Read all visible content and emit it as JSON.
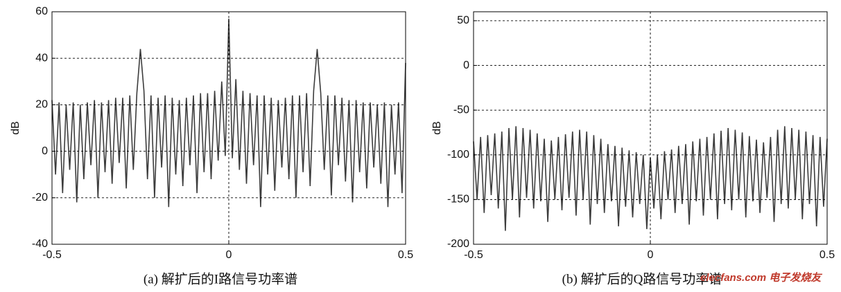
{
  "chart_data": [
    {
      "type": "line",
      "title": "(a) 解扩后的I路信号功率谱",
      "ylabel": "dB",
      "color": "#3c3c3c",
      "grid": true,
      "xlim": [
        -0.5,
        0.5
      ],
      "xticks": [
        -0.5,
        0,
        0.5
      ],
      "ylim": [
        -40,
        60
      ],
      "yticks": [
        -40,
        -20,
        0,
        20,
        40,
        60
      ],
      "x": [
        -0.5,
        -0.49,
        -0.48,
        -0.47,
        -0.46,
        -0.45,
        -0.44,
        -0.43,
        -0.42,
        -0.41,
        -0.4,
        -0.39,
        -0.38,
        -0.37,
        -0.36,
        -0.35,
        -0.34,
        -0.33,
        -0.32,
        -0.31,
        -0.3,
        -0.29,
        -0.28,
        -0.27,
        -0.26,
        -0.25,
        -0.24,
        -0.23,
        -0.22,
        -0.21,
        -0.2,
        -0.19,
        -0.18,
        -0.17,
        -0.16,
        -0.15,
        -0.14,
        -0.13,
        -0.12,
        -0.11,
        -0.1,
        -0.09,
        -0.08,
        -0.07,
        -0.06,
        -0.05,
        -0.04,
        -0.03,
        -0.02,
        -0.01,
        0,
        0.01,
        0.02,
        0.03,
        0.04,
        0.05,
        0.06,
        0.07,
        0.08,
        0.09,
        0.1,
        0.11,
        0.12,
        0.13,
        0.14,
        0.15,
        0.16,
        0.17,
        0.18,
        0.19,
        0.2,
        0.21,
        0.22,
        0.23,
        0.24,
        0.25,
        0.26,
        0.27,
        0.28,
        0.29,
        0.3,
        0.31,
        0.32,
        0.33,
        0.34,
        0.35,
        0.36,
        0.37,
        0.38,
        0.39,
        0.4,
        0.41,
        0.42,
        0.43,
        0.44,
        0.45,
        0.46,
        0.47,
        0.48,
        0.49,
        0.5
      ],
      "values": [
        22,
        -10,
        21,
        -18,
        20,
        -8,
        21,
        -22,
        20,
        -12,
        21,
        -6,
        22,
        -20,
        21,
        -9,
        22,
        -14,
        23,
        -5,
        23,
        -16,
        24,
        -8,
        25,
        44,
        26,
        -12,
        24,
        -20,
        23,
        -7,
        24,
        -24,
        23,
        -10,
        22,
        -15,
        23,
        -6,
        24,
        -18,
        25,
        -9,
        25,
        -12,
        26,
        -4,
        30,
        -2,
        57,
        -3,
        31,
        -8,
        26,
        -14,
        25,
        -6,
        24,
        -24,
        24,
        -10,
        23,
        -17,
        22,
        -7,
        23,
        -12,
        24,
        -20,
        24,
        -9,
        25,
        -15,
        26,
        44,
        25,
        -8,
        24,
        -19,
        24,
        -6,
        23,
        -13,
        22,
        -22,
        22,
        -9,
        21,
        -16,
        21,
        -7,
        20,
        -14,
        21,
        -24,
        20,
        -10,
        21,
        -18,
        38
      ]
    },
    {
      "type": "line",
      "title": "(b) 解扩后的Q路信号功率谱",
      "ylabel": "dB",
      "color": "#3c3c3c",
      "grid": true,
      "watermark": "elecfans.com 电子发烧友",
      "xlim": [
        -0.5,
        0.5
      ],
      "xticks": [
        -0.5,
        0,
        0.5
      ],
      "ylim": [
        -200,
        60
      ],
      "yticks": [
        -200,
        -150,
        -100,
        -50,
        0,
        50
      ],
      "x": [
        -0.5,
        -0.49,
        -0.48,
        -0.47,
        -0.46,
        -0.45,
        -0.44,
        -0.43,
        -0.42,
        -0.41,
        -0.4,
        -0.39,
        -0.38,
        -0.37,
        -0.36,
        -0.35,
        -0.34,
        -0.33,
        -0.32,
        -0.31,
        -0.3,
        -0.29,
        -0.28,
        -0.27,
        -0.26,
        -0.25,
        -0.24,
        -0.23,
        -0.22,
        -0.21,
        -0.2,
        -0.19,
        -0.18,
        -0.17,
        -0.16,
        -0.15,
        -0.14,
        -0.13,
        -0.12,
        -0.11,
        -0.1,
        -0.09,
        -0.08,
        -0.07,
        -0.06,
        -0.05,
        -0.04,
        -0.03,
        -0.02,
        -0.01,
        0,
        0.01,
        0.02,
        0.03,
        0.04,
        0.05,
        0.06,
        0.07,
        0.08,
        0.09,
        0.1,
        0.11,
        0.12,
        0.13,
        0.14,
        0.15,
        0.16,
        0.17,
        0.18,
        0.19,
        0.2,
        0.21,
        0.22,
        0.23,
        0.24,
        0.25,
        0.26,
        0.27,
        0.28,
        0.29,
        0.3,
        0.31,
        0.32,
        0.33,
        0.34,
        0.35,
        0.36,
        0.37,
        0.38,
        0.39,
        0.4,
        0.41,
        0.42,
        0.43,
        0.44,
        0.45,
        0.46,
        0.47,
        0.48,
        0.49,
        0.5
      ],
      "values": [
        -85,
        -150,
        -80,
        -165,
        -78,
        -145,
        -76,
        -160,
        -74,
        -185,
        -70,
        -150,
        -68,
        -170,
        -70,
        -148,
        -72,
        -160,
        -76,
        -152,
        -82,
        -175,
        -84,
        -150,
        -80,
        -162,
        -77,
        -148,
        -74,
        -168,
        -72,
        -150,
        -74,
        -178,
        -78,
        -155,
        -82,
        -165,
        -88,
        -152,
        -90,
        -180,
        -92,
        -158,
        -95,
        -170,
        -97,
        -155,
        -100,
        -183,
        -103,
        -160,
        -100,
        -172,
        -96,
        -150,
        -94,
        -165,
        -90,
        -155,
        -88,
        -178,
        -85,
        -152,
        -82,
        -168,
        -80,
        -150,
        -76,
        -172,
        -73,
        -155,
        -70,
        -162,
        -72,
        -150,
        -75,
        -170,
        -79,
        -152,
        -83,
        -165,
        -86,
        -148,
        -80,
        -175,
        -72,
        -155,
        -68,
        -160,
        -70,
        -150,
        -72,
        -172,
        -74,
        -155,
        -78,
        -180,
        -80,
        -158,
        -82
      ]
    }
  ]
}
